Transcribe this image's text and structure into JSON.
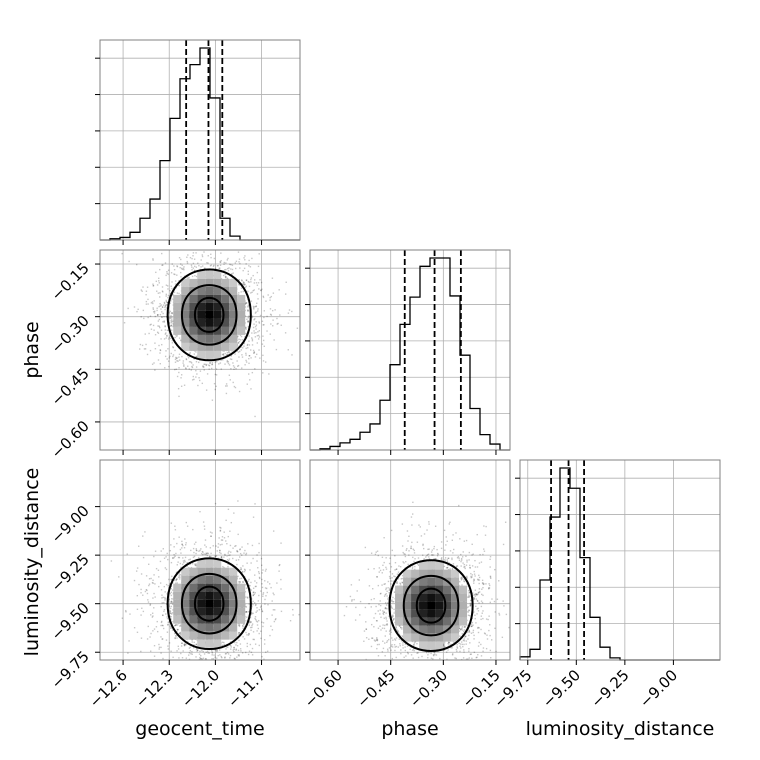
{
  "chart_data": {
    "type": "corner",
    "parameters": [
      "geocent_time",
      "phase",
      "luminosity_distance"
    ],
    "grid": true,
    "ranges": {
      "geocent_time": [
        -12.75,
        -11.45
      ],
      "phase": [
        -0.68,
        -0.11
      ],
      "luminosity_distance": [
        -9.79,
        -8.76
      ]
    },
    "ticks": {
      "geocent_time": [
        "−12.6",
        "−12.3",
        "−12.0",
        "−11.7"
      ],
      "phase": [
        "−0.60",
        "−0.45",
        "−0.30",
        "−0.15"
      ],
      "luminosity_distance": [
        "−9.75",
        "−9.50",
        "−9.25",
        "−9.00"
      ]
    },
    "tick_values": {
      "geocent_time": [
        -12.6,
        -12.3,
        -12.0,
        -11.7
      ],
      "phase": [
        -0.6,
        -0.45,
        -0.3,
        -0.15
      ],
      "luminosity_distance": [
        -9.75,
        -9.5,
        -9.25,
        -9.0
      ]
    },
    "histograms": {
      "geocent_time": {
        "bins": [
          -12.75,
          -12.685,
          -12.62,
          -12.555,
          -12.49,
          -12.425,
          -12.36,
          -12.295,
          -12.23,
          -12.165,
          -12.1,
          -12.035,
          -11.97,
          -11.905,
          -11.84,
          -11.775,
          -11.71,
          -11.645,
          -11.58,
          -11.515,
          -11.45
        ],
        "counts": [
          0,
          1,
          2,
          6,
          17,
          32,
          62,
          95,
          126,
          137,
          150,
          111,
          17,
          3,
          0,
          0,
          0,
          0,
          0,
          0
        ],
        "quantiles": [
          -12.19,
          -12.045,
          -11.955
        ]
      },
      "phase": {
        "bins": [
          -0.68,
          -0.6515,
          -0.623,
          -0.5945,
          -0.566,
          -0.5375,
          -0.509,
          -0.4805,
          -0.452,
          -0.4235,
          -0.395,
          -0.3665,
          -0.338,
          -0.3095,
          -0.281,
          -0.2525,
          -0.224,
          -0.1955,
          -0.167,
          -0.1385,
          -0.11
        ],
        "counts": [
          0,
          1,
          3,
          6,
          9,
          15,
          22,
          42,
          72,
          106,
          129,
          155,
          162,
          162,
          130,
          80,
          35,
          13,
          5,
          0
        ],
        "quantiles": [
          -0.41,
          -0.325,
          -0.25
        ]
      },
      "luminosity_distance": {
        "bins": [
          -9.79,
          -9.7385,
          -9.687,
          -9.6355,
          -9.584,
          -9.5325,
          -9.481,
          -9.4295,
          -9.378,
          -9.3265,
          -9.275,
          -9.2235,
          -9.172,
          -9.1205,
          -9.069,
          -9.0175,
          -8.966,
          -8.9145,
          -8.863,
          -8.8115,
          -8.76
        ],
        "counts": [
          3,
          10,
          75,
          134,
          180,
          161,
          96,
          40,
          12,
          2,
          0,
          0,
          0,
          0,
          0,
          0,
          0,
          0,
          0,
          0
        ],
        "quantiles": [
          -9.63,
          -9.54,
          -9.46
        ]
      }
    },
    "density_peaks": {
      "phase_vs_geocent_time": {
        "x": -12.04,
        "y": -0.295
      },
      "luminosity_distance_vs_geocent_time": {
        "x": -12.04,
        "y": -9.5
      },
      "luminosity_distance_vs_phase": {
        "x": -0.335,
        "y": -9.51
      }
    }
  }
}
